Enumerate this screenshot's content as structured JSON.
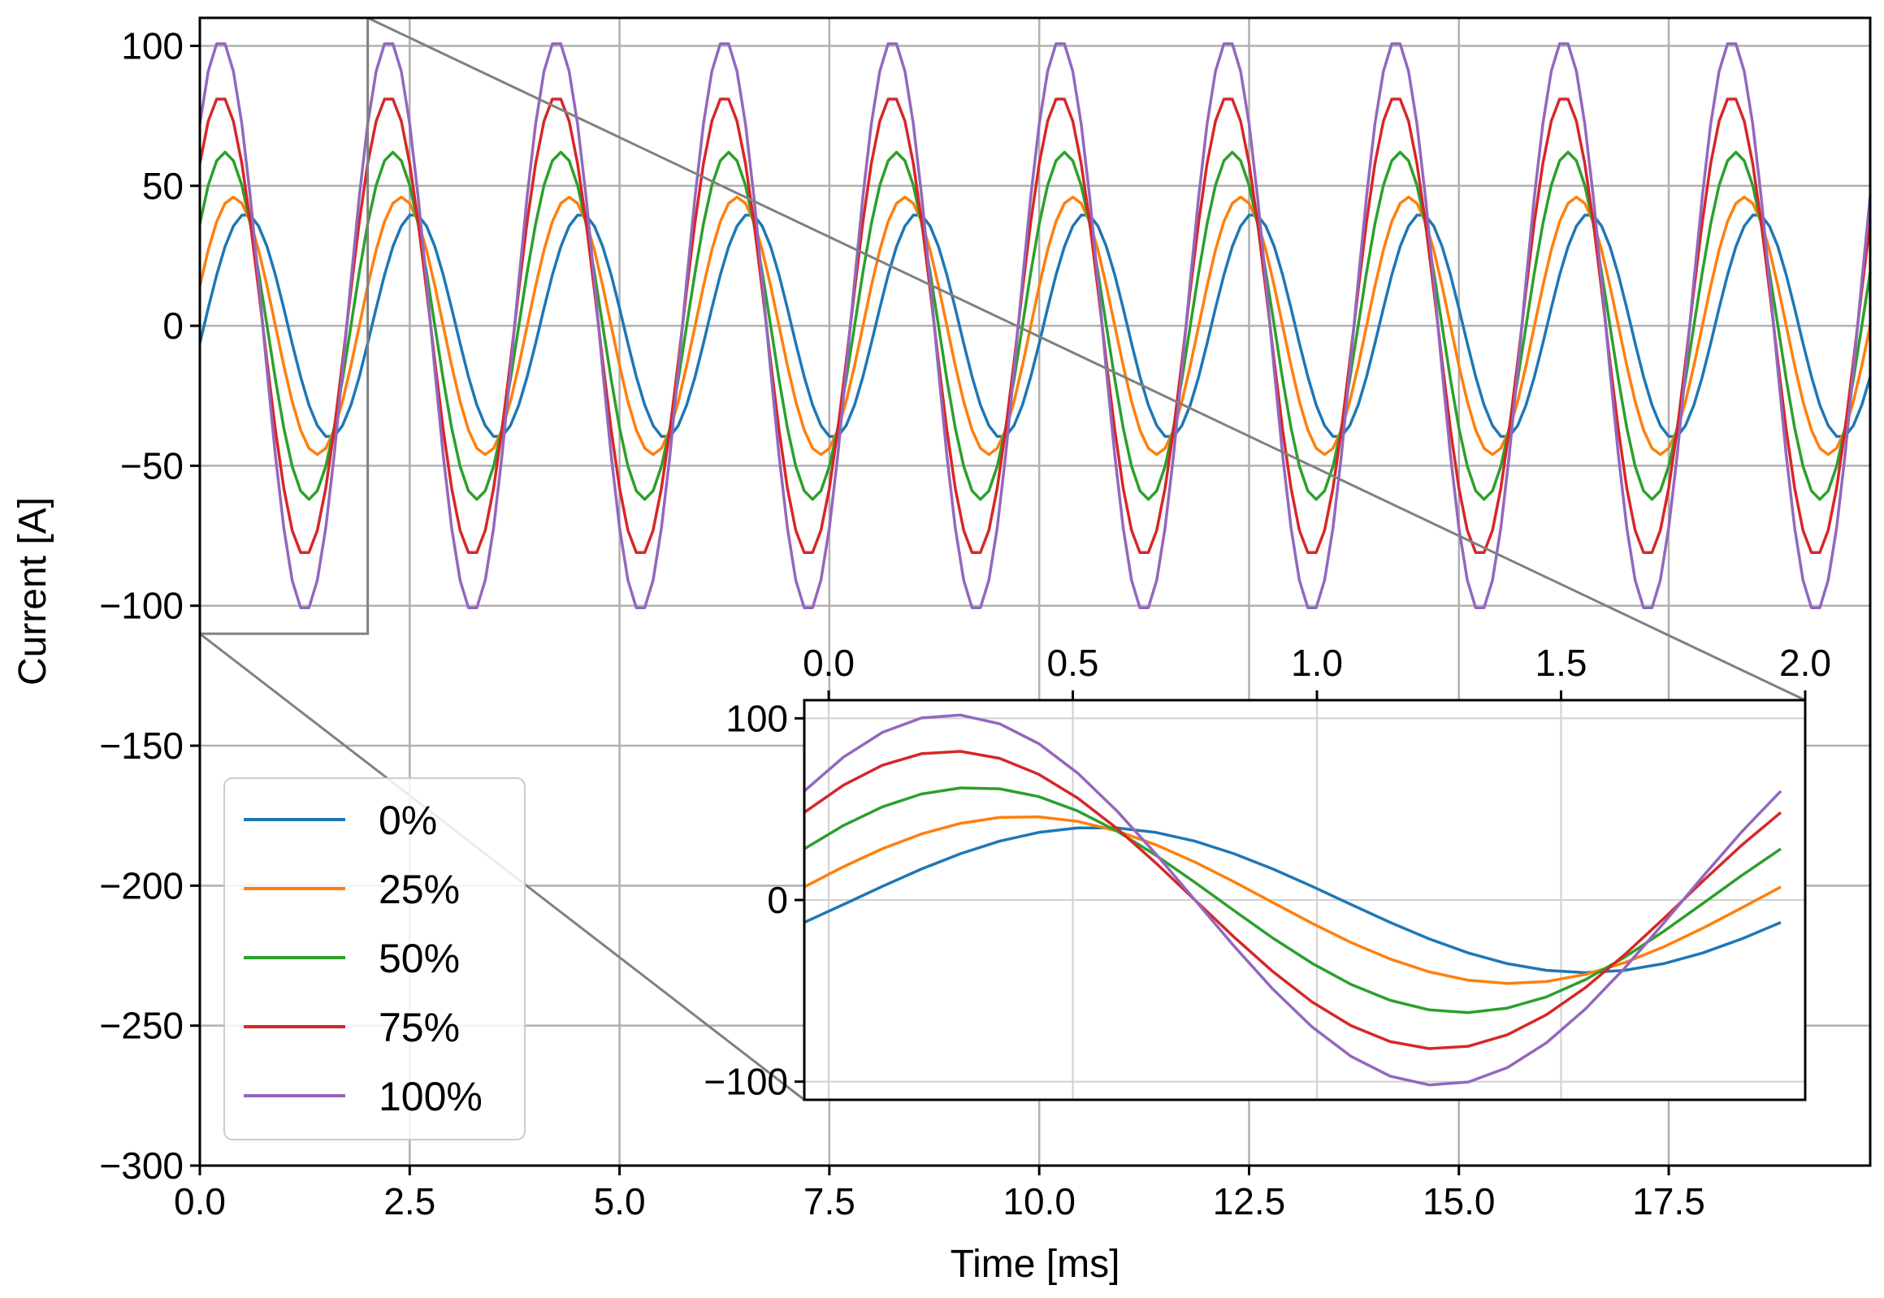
{
  "chart_data": {
    "type": "line",
    "xlabel": "Time [ms]",
    "ylabel": "Current [A]",
    "xlim": [
      0,
      19.9
    ],
    "ylim": [
      -300,
      110
    ],
    "xticks": [
      0.0,
      2.5,
      5.0,
      7.5,
      10.0,
      12.5,
      15.0,
      17.5
    ],
    "xtick_labels": [
      "0.0",
      "2.5",
      "5.0",
      "7.5",
      "10.0",
      "12.5",
      "15.0",
      "17.5"
    ],
    "yticks": [
      100,
      50,
      0,
      -50,
      -100,
      -150,
      -200,
      -250,
      -300
    ],
    "ytick_labels": [
      "100",
      "50",
      "0",
      "−50",
      "−100",
      "−150",
      "−200",
      "−250",
      "−300"
    ],
    "grid": true,
    "legend_position": "lower-left",
    "period_ms": 2.0,
    "series": [
      {
        "name": "0%",
        "color": "#1f77b4",
        "amplitude": 40,
        "peak_time_ms": 0.55
      },
      {
        "name": "25%",
        "color": "#ff7f0e",
        "amplitude": 46,
        "peak_time_ms": 0.4
      },
      {
        "name": "50%",
        "color": "#2ca02c",
        "amplitude": 62,
        "peak_time_ms": 0.3
      },
      {
        "name": "75%",
        "color": "#d62728",
        "amplitude": 82,
        "peak_time_ms": 0.25
      },
      {
        "name": "100%",
        "color": "#9467bd",
        "amplitude": 102,
        "peak_time_ms": 0.25
      }
    ],
    "inset": {
      "xlim": [
        -0.05,
        2.0
      ],
      "ylim": [
        -110,
        110
      ],
      "xticks": [
        0.0,
        0.5,
        1.0,
        1.5,
        2.0
      ],
      "xtick_labels": [
        "0.0",
        "0.5",
        "1.0",
        "1.5",
        "2.0"
      ],
      "yticks": [
        100,
        0,
        -100
      ],
      "ytick_labels": [
        "100",
        "0",
        "−100"
      ],
      "zoom_region": {
        "x": [
          0,
          2
        ],
        "y": [
          -110,
          110
        ]
      }
    }
  }
}
